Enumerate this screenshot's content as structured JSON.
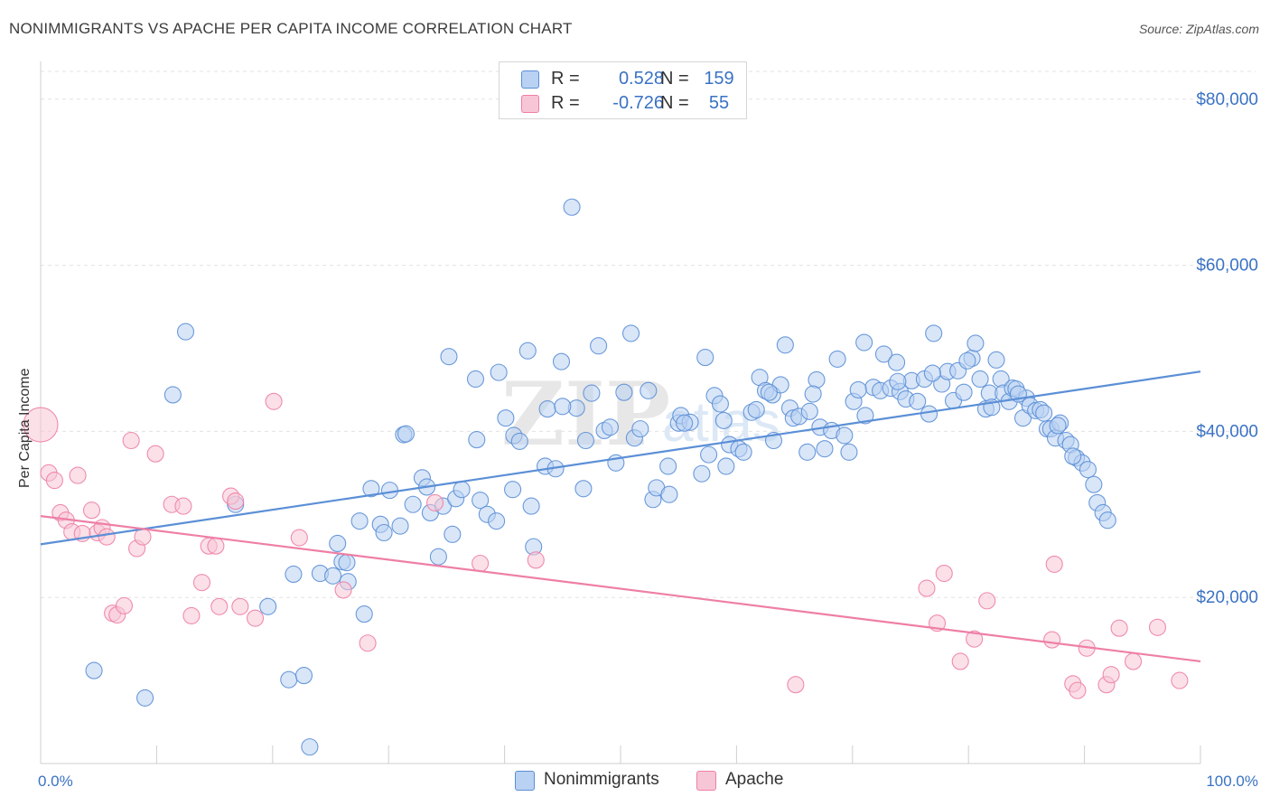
{
  "header": {
    "title": "NONIMMIGRANTS VS APACHE PER CAPITA INCOME CORRELATION CHART",
    "source": "Source: ZipAtlas.com"
  },
  "legend": {
    "rows": [
      {
        "r_label": "R =",
        "r_value": "0.528",
        "n_label": "N =",
        "n_value": "159",
        "color": "#5b8fd6"
      },
      {
        "r_label": "R =",
        "r_value": "-0.726",
        "n_label": "N =",
        "n_value": "55",
        "color": "#ee7fa6"
      }
    ]
  },
  "watermark": {
    "zip": "ZIP",
    "atlas": "atlas"
  },
  "chart_data": {
    "type": "scatter",
    "title": "NONIMMIGRANTS VS APACHE PER CAPITA INCOME CORRELATION CHART",
    "xlabel": "",
    "ylabel": "Per Capita Income",
    "xlim": [
      0,
      100
    ],
    "ylim": [
      0,
      84000
    ],
    "x_tick_labels": [
      "0.0%",
      "100.0%"
    ],
    "y_ticks": [
      20000,
      40000,
      60000,
      80000
    ],
    "y_tick_labels": [
      "$20,000",
      "$40,000",
      "$60,000",
      "$80,000"
    ],
    "grid": true,
    "legend_position": "top-center",
    "series": [
      {
        "name": "Nonimmigrants",
        "color": "#5b8fd6",
        "fill": "#b9d1f2",
        "r": 0.528,
        "n": 159,
        "trend": {
          "x": [
            0,
            100
          ],
          "y": [
            26400,
            47200
          ]
        },
        "points": [
          [
            4.6,
            11200
          ],
          [
            9.0,
            7900
          ],
          [
            11.4,
            44400
          ],
          [
            12.5,
            52000
          ],
          [
            16.8,
            31200
          ],
          [
            19.6,
            18900
          ],
          [
            21.4,
            10100
          ],
          [
            21.8,
            22800
          ],
          [
            22.7,
            10600
          ],
          [
            23.2,
            2000
          ],
          [
            24.1,
            22900
          ],
          [
            25.2,
            22600
          ],
          [
            25.6,
            26500
          ],
          [
            26.0,
            24300
          ],
          [
            26.4,
            24200
          ],
          [
            26.5,
            21900
          ],
          [
            27.5,
            29200
          ],
          [
            27.9,
            18000
          ],
          [
            28.5,
            33100
          ],
          [
            29.3,
            28800
          ],
          [
            29.6,
            27800
          ],
          [
            30.1,
            32900
          ],
          [
            31.0,
            28600
          ],
          [
            31.3,
            39600
          ],
          [
            31.5,
            39700
          ],
          [
            32.1,
            31200
          ],
          [
            32.9,
            34400
          ],
          [
            33.3,
            33300
          ],
          [
            33.6,
            30200
          ],
          [
            34.3,
            24900
          ],
          [
            34.7,
            31000
          ],
          [
            35.2,
            49000
          ],
          [
            35.5,
            27600
          ],
          [
            35.8,
            31900
          ],
          [
            36.3,
            33000
          ],
          [
            37.5,
            46300
          ],
          [
            37.6,
            39000
          ],
          [
            37.9,
            31700
          ],
          [
            38.5,
            30000
          ],
          [
            39.3,
            29200
          ],
          [
            39.5,
            47100
          ],
          [
            40.1,
            41600
          ],
          [
            40.7,
            33000
          ],
          [
            40.8,
            39500
          ],
          [
            41.3,
            38800
          ],
          [
            42.0,
            49700
          ],
          [
            42.3,
            31000
          ],
          [
            42.5,
            26100
          ],
          [
            43.5,
            35800
          ],
          [
            43.7,
            42700
          ],
          [
            44.4,
            35500
          ],
          [
            44.9,
            48400
          ],
          [
            45.8,
            67000
          ],
          [
            46.2,
            42800
          ],
          [
            46.8,
            33100
          ],
          [
            47.0,
            38900
          ],
          [
            47.5,
            44600
          ],
          [
            48.1,
            50300
          ],
          [
            48.6,
            40100
          ],
          [
            49.1,
            40500
          ],
          [
            49.6,
            36200
          ],
          [
            50.3,
            44700
          ],
          [
            50.9,
            51800
          ],
          [
            51.2,
            39200
          ],
          [
            51.7,
            40300
          ],
          [
            52.4,
            44900
          ],
          [
            52.8,
            31800
          ],
          [
            53.1,
            33200
          ],
          [
            54.1,
            35800
          ],
          [
            54.2,
            32400
          ],
          [
            55.0,
            41000
          ],
          [
            55.2,
            41900
          ],
          [
            56.0,
            41100
          ],
          [
            57.0,
            34900
          ],
          [
            57.3,
            48900
          ],
          [
            57.6,
            37200
          ],
          [
            58.1,
            44300
          ],
          [
            58.6,
            43300
          ],
          [
            59.1,
            35800
          ],
          [
            59.4,
            38400
          ],
          [
            60.2,
            37900
          ],
          [
            60.6,
            37500
          ],
          [
            61.3,
            42300
          ],
          [
            61.7,
            42600
          ],
          [
            62.0,
            46500
          ],
          [
            62.5,
            44900
          ],
          [
            63.1,
            44400
          ],
          [
            63.2,
            38900
          ],
          [
            63.8,
            45600
          ],
          [
            64.2,
            50400
          ],
          [
            64.6,
            42800
          ],
          [
            64.9,
            41600
          ],
          [
            65.4,
            41800
          ],
          [
            66.1,
            37500
          ],
          [
            66.3,
            42400
          ],
          [
            66.9,
            46200
          ],
          [
            67.2,
            40500
          ],
          [
            67.6,
            37900
          ],
          [
            68.2,
            40100
          ],
          [
            68.7,
            48700
          ],
          [
            69.3,
            39500
          ],
          [
            69.7,
            37500
          ],
          [
            70.1,
            43600
          ],
          [
            71.0,
            50700
          ],
          [
            71.1,
            41900
          ],
          [
            71.8,
            45300
          ],
          [
            72.4,
            44900
          ],
          [
            72.7,
            49300
          ],
          [
            73.3,
            45200
          ],
          [
            73.8,
            48300
          ],
          [
            74.1,
            44800
          ],
          [
            74.6,
            43900
          ],
          [
            75.1,
            46100
          ],
          [
            75.6,
            43600
          ],
          [
            76.2,
            46300
          ],
          [
            76.6,
            42100
          ],
          [
            77.0,
            51800
          ],
          [
            77.7,
            45700
          ],
          [
            78.2,
            47200
          ],
          [
            78.7,
            43700
          ],
          [
            79.1,
            47300
          ],
          [
            79.6,
            44700
          ],
          [
            80.3,
            48800
          ],
          [
            80.6,
            50600
          ],
          [
            81.0,
            46300
          ],
          [
            81.5,
            42700
          ],
          [
            81.8,
            44600
          ],
          [
            82.4,
            48600
          ],
          [
            82.8,
            46300
          ],
          [
            83.0,
            44600
          ],
          [
            83.5,
            43600
          ],
          [
            83.8,
            45200
          ],
          [
            84.1,
            45100
          ],
          [
            84.7,
            41600
          ],
          [
            85.0,
            44000
          ],
          [
            85.3,
            43100
          ],
          [
            85.8,
            42500
          ],
          [
            86.2,
            42600
          ],
          [
            86.8,
            40300
          ],
          [
            87.1,
            40300
          ],
          [
            87.5,
            39200
          ],
          [
            87.9,
            41000
          ],
          [
            88.4,
            38900
          ],
          [
            88.8,
            38400
          ],
          [
            89.3,
            36800
          ],
          [
            89.8,
            36200
          ],
          [
            90.3,
            35400
          ],
          [
            90.8,
            33600
          ],
          [
            91.1,
            31400
          ],
          [
            91.6,
            30200
          ],
          [
            92.0,
            29300
          ],
          [
            45.0,
            43000
          ],
          [
            55.5,
            41000
          ],
          [
            66.6,
            44500
          ],
          [
            84.3,
            44500
          ],
          [
            89.0,
            37000
          ],
          [
            73.9,
            46000
          ],
          [
            79.9,
            48500
          ],
          [
            58.9,
            41300
          ],
          [
            62.8,
            44700
          ],
          [
            70.5,
            45000
          ],
          [
            86.5,
            42200
          ],
          [
            87.7,
            40700
          ],
          [
            76.9,
            47000
          ],
          [
            82.0,
            42900
          ]
        ]
      },
      {
        "name": "Apache",
        "color": "#ee7fa6",
        "fill": "#f7c6d6",
        "r": -0.726,
        "n": 55,
        "trend": {
          "x": [
            0,
            100
          ],
          "y": [
            29800,
            12300
          ]
        },
        "points": [
          [
            0.0,
            40800
          ],
          [
            0.7,
            35000
          ],
          [
            1.2,
            34100
          ],
          [
            1.7,
            30200
          ],
          [
            2.2,
            29300
          ],
          [
            2.7,
            27900
          ],
          [
            3.2,
            34700
          ],
          [
            3.6,
            27700
          ],
          [
            4.4,
            30500
          ],
          [
            4.9,
            27800
          ],
          [
            5.3,
            28400
          ],
          [
            5.7,
            27300
          ],
          [
            6.2,
            18100
          ],
          [
            6.6,
            17900
          ],
          [
            7.2,
            19000
          ],
          [
            7.8,
            38900
          ],
          [
            8.3,
            25900
          ],
          [
            8.8,
            27300
          ],
          [
            9.9,
            37300
          ],
          [
            11.3,
            31200
          ],
          [
            12.3,
            31000
          ],
          [
            13.0,
            17800
          ],
          [
            13.9,
            21800
          ],
          [
            14.5,
            26200
          ],
          [
            15.1,
            26200
          ],
          [
            15.4,
            18900
          ],
          [
            16.4,
            32200
          ],
          [
            16.8,
            31600
          ],
          [
            17.2,
            18900
          ],
          [
            18.5,
            17500
          ],
          [
            20.1,
            43600
          ],
          [
            22.3,
            27200
          ],
          [
            26.1,
            20900
          ],
          [
            28.2,
            14500
          ],
          [
            34.0,
            31400
          ],
          [
            37.9,
            24100
          ],
          [
            42.7,
            24500
          ],
          [
            65.1,
            9500
          ],
          [
            76.4,
            21100
          ],
          [
            77.3,
            16900
          ],
          [
            77.9,
            22900
          ],
          [
            79.3,
            12300
          ],
          [
            80.5,
            15000
          ],
          [
            81.6,
            19600
          ],
          [
            87.2,
            14900
          ],
          [
            87.4,
            24000
          ],
          [
            89.0,
            9600
          ],
          [
            89.4,
            8800
          ],
          [
            90.2,
            13900
          ],
          [
            91.9,
            9500
          ],
          [
            92.3,
            10700
          ],
          [
            93.0,
            16300
          ],
          [
            94.2,
            12300
          ],
          [
            96.3,
            16400
          ],
          [
            98.2,
            10000
          ]
        ]
      }
    ]
  },
  "bottom_legend": {
    "items": [
      "Nonimmigrants",
      "Apache"
    ]
  }
}
